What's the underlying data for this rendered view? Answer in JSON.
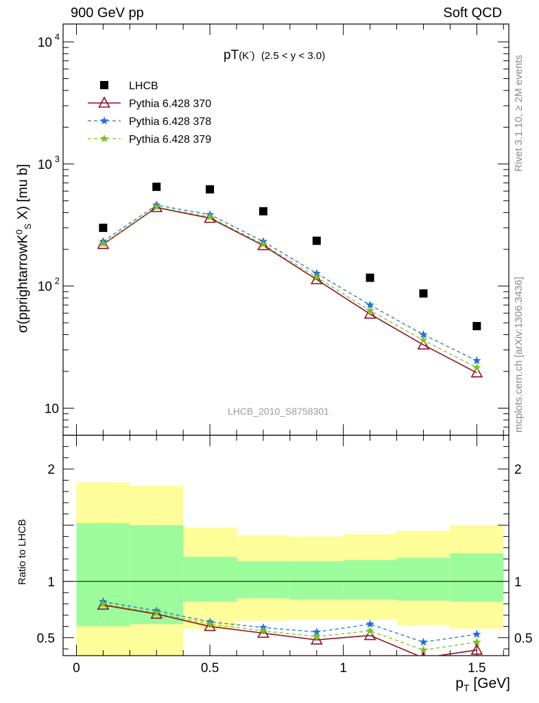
{
  "header": {
    "left": "900 GeV pp",
    "right": "Soft QCD"
  },
  "side_labels": {
    "rivet": "Rivet 3.1.10, ≥ 2M events",
    "mcplots": "mcplots.cern.ch [arXiv:1306.3436]"
  },
  "chart_data": [
    {
      "type": "scatter",
      "title_main": "pT",
      "title_particle": "(K",
      "title_particle_sup": "-",
      "title_particle_close": ")",
      "title_range": "(2.5 < y < 3.0)",
      "ylabel": "σ(pprightarrowK⁰ₛ X) [mu b]",
      "ylabel_main": "σ(pprightarrowK",
      "ylabel_sup": "0",
      "ylabel_sub": "S",
      "ylabel_end": " X) [mu b]",
      "yscale": "log",
      "ylim": [
        6,
        14000
      ],
      "xlim": [
        -0.05,
        1.62
      ],
      "y_ticks": [
        {
          "value": 10,
          "label": "10",
          "exp": ""
        },
        {
          "value": 100,
          "label": "10",
          "exp": "2"
        },
        {
          "value": 1000,
          "label": "10",
          "exp": "3"
        },
        {
          "value": 10000,
          "label": "10",
          "exp": "4"
        }
      ],
      "watermark": "LHCB_2010_S8758301",
      "legend_position": "top-left",
      "x": [
        0.1,
        0.3,
        0.5,
        0.7,
        0.9,
        1.1,
        1.3,
        1.5
      ],
      "series": [
        {
          "name": "LHCB",
          "color": "#000000",
          "marker": "square",
          "line": "none",
          "values": [
            300,
            650,
            620,
            410,
            235,
            117,
            87,
            47
          ]
        },
        {
          "name": "Pythia 6.428 370",
          "color": "#8b0f23",
          "marker": "triangle",
          "line": "solid",
          "values": [
            220,
            440,
            360,
            215,
            113,
            59,
            33,
            19.5
          ]
        },
        {
          "name": "Pythia 6.428 378",
          "color": "#1f6fd6",
          "marker": "star",
          "line": "dashed",
          "values": [
            232,
            460,
            385,
            232,
            127,
            70,
            40,
            24.5
          ]
        },
        {
          "name": "Pythia 6.428 379",
          "color": "#7fbf1a",
          "marker": "star",
          "line": "dashed",
          "values": [
            222,
            445,
            368,
            220,
            118,
            63,
            36,
            21.5
          ]
        }
      ]
    },
    {
      "type": "line",
      "ylabel": "Ratio to LHCB",
      "xlabel": "p",
      "xlabel_sub": "T",
      "xlabel_end": " [GeV]",
      "ylim": [
        0.34,
        2.3
      ],
      "xlim": [
        -0.05,
        1.62
      ],
      "x_ticks": [
        {
          "value": 0,
          "label": "0"
        },
        {
          "value": 0.5,
          "label": "0.5"
        },
        {
          "value": 1,
          "label": "1"
        },
        {
          "value": 1.5,
          "label": "1.5"
        }
      ],
      "y_ticks": [
        {
          "value": 0.5,
          "label": "0.5"
        },
        {
          "value": 1,
          "label": "1"
        },
        {
          "value": 2,
          "label": "2"
        }
      ],
      "bands": [
        {
          "xlo": 0.0,
          "xhi": 0.2,
          "stat": [
            0.6,
            1.52
          ],
          "total": [
            0.34,
            1.88
          ]
        },
        {
          "xlo": 0.2,
          "xhi": 0.4,
          "stat": [
            0.62,
            1.5
          ],
          "total": [
            0.34,
            1.85
          ]
        },
        {
          "xlo": 0.4,
          "xhi": 0.6,
          "stat": [
            0.82,
            1.22
          ],
          "total": [
            0.58,
            1.48
          ]
        },
        {
          "xlo": 0.6,
          "xhi": 0.8,
          "stat": [
            0.85,
            1.18
          ],
          "total": [
            0.65,
            1.41
          ]
        },
        {
          "xlo": 0.8,
          "xhi": 1.0,
          "stat": [
            0.84,
            1.18
          ],
          "total": [
            0.66,
            1.4
          ]
        },
        {
          "xlo": 1.0,
          "xhi": 1.2,
          "stat": [
            0.84,
            1.19
          ],
          "total": [
            0.66,
            1.42
          ]
        },
        {
          "xlo": 1.2,
          "xhi": 1.4,
          "stat": [
            0.83,
            1.21
          ],
          "total": [
            0.61,
            1.45
          ]
        },
        {
          "xlo": 1.4,
          "xhi": 1.6,
          "stat": [
            0.82,
            1.25
          ],
          "total": [
            0.58,
            1.5
          ]
        }
      ],
      "band_colors": {
        "stat": "#9cfc9c",
        "total": "#fdfd9a"
      },
      "x": [
        0.1,
        0.3,
        0.5,
        0.7,
        0.9,
        1.1,
        1.3,
        1.5
      ],
      "series": [
        {
          "name": "Pythia 6.428 370",
          "color": "#8b0f23",
          "marker": "triangle",
          "line": "solid",
          "values": [
            0.79,
            0.71,
            0.6,
            0.54,
            0.48,
            0.52,
            0.32,
            0.39
          ]
        },
        {
          "name": "Pythia 6.428 378",
          "color": "#1f6fd6",
          "marker": "star",
          "line": "dashed",
          "values": [
            0.82,
            0.74,
            0.64,
            0.59,
            0.55,
            0.62,
            0.46,
            0.53
          ]
        },
        {
          "name": "Pythia 6.428 379",
          "color": "#7fbf1a",
          "marker": "star",
          "line": "dashed",
          "values": [
            0.8,
            0.72,
            0.62,
            0.56,
            0.51,
            0.56,
            0.39,
            0.46
          ]
        }
      ]
    }
  ]
}
